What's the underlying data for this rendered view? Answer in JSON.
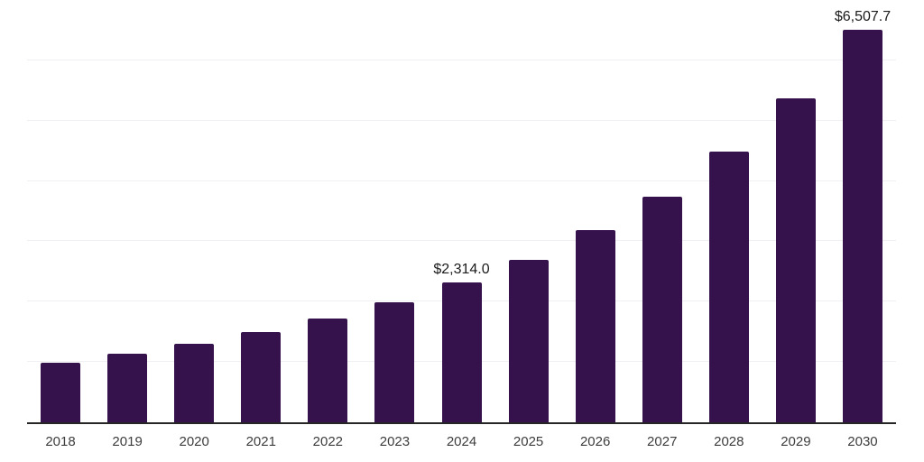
{
  "chart_data": {
    "type": "bar",
    "title": "",
    "xlabel": "",
    "ylabel": "",
    "categories": [
      "2018",
      "2019",
      "2020",
      "2021",
      "2022",
      "2023",
      "2024",
      "2025",
      "2026",
      "2027",
      "2028",
      "2029",
      "2030"
    ],
    "values": [
      980,
      1130,
      1305,
      1490,
      1720,
      1985,
      2314.0,
      2700,
      3185,
      3745,
      4480,
      5375,
      6507.7
    ],
    "data_labels": [
      {
        "category": "2024",
        "text": "$2,314.0"
      },
      {
        "category": "2030",
        "text": "$6,507.7"
      }
    ],
    "ylim": [
      0,
      7000
    ],
    "gridline_step": 1000,
    "grid": "horizontal-only",
    "legend": "none",
    "y_axis_ticks_visible": false
  },
  "colors": {
    "bar": "#35124B",
    "grid": "#f0eff3",
    "axis_line": "#262626",
    "tick_label": "#3d3d3d",
    "data_label": "#1a1a1a",
    "background": "#ffffff"
  }
}
